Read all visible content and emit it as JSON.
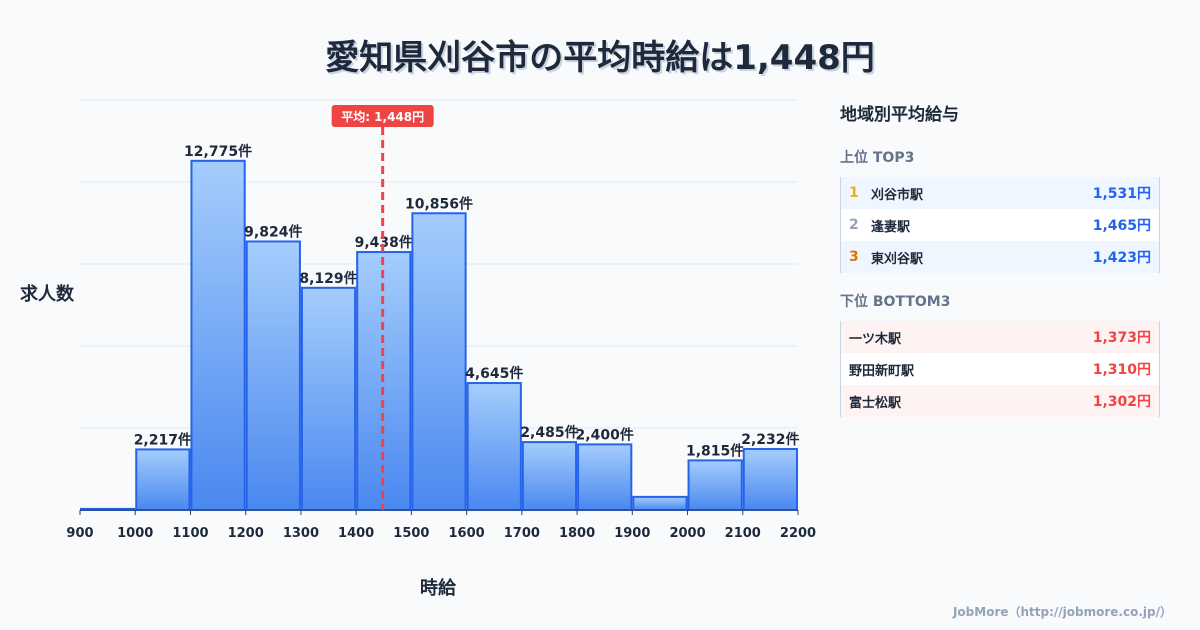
{
  "title": "愛知県刈谷市の平均時給は1,448円",
  "chart_data": {
    "type": "bar",
    "title": "愛知県刈谷市の平均時給は1,448円",
    "xlabel": "時給",
    "ylabel": "求人数",
    "bin_edges": [
      900,
      1000,
      1100,
      1200,
      1300,
      1400,
      1500,
      1600,
      1700,
      1800,
      1900,
      2000,
      2100,
      2200
    ],
    "x_tick_labels": [
      "900",
      "1000",
      "1100",
      "1200",
      "1300",
      "1400",
      "1500",
      "1600",
      "1700",
      "1800",
      "1900",
      "2000",
      "2100",
      "2200"
    ],
    "values": [
      40,
      2217,
      12775,
      9824,
      8129,
      9438,
      10856,
      4645,
      2485,
      2400,
      480,
      1815,
      2232
    ],
    "data_labels": [
      "",
      "2,217件",
      "12,775件",
      "9,824件",
      "8,129件",
      "9,438件",
      "10,856件",
      "4,645件",
      "2,485件",
      "2,400件",
      "",
      "1,815件",
      "2,232件"
    ],
    "ylim": [
      0,
      15000
    ],
    "xlim": [
      900,
      2200
    ],
    "grid": true,
    "mean": 1448,
    "mean_label": "平均: 1,448円",
    "colors": {
      "bar_top": "#a5cdfc",
      "bar_bottom": "#4a88f0",
      "bar_stroke": "#2563eb",
      "mean": "#ef4444"
    }
  },
  "side": {
    "title": "地域別平均給与",
    "top_label": "上位 TOP3",
    "top": [
      {
        "rank": "1",
        "name": "刈谷市駅",
        "value": "1,531円",
        "color": "#eab308"
      },
      {
        "rank": "2",
        "name": "逢妻駅",
        "value": "1,465円",
        "color": "#94a3b8"
      },
      {
        "rank": "3",
        "name": "東刈谷駅",
        "value": "1,423円",
        "color": "#d97706"
      }
    ],
    "bottom_label": "下位 BOTTOM3",
    "bottom": [
      {
        "name": "一ツ木駅",
        "value": "1,373円"
      },
      {
        "name": "野田新町駅",
        "value": "1,310円"
      },
      {
        "name": "富士松駅",
        "value": "1,302円"
      }
    ]
  },
  "footer": "JobMore（http://jobmore.co.jp/）"
}
